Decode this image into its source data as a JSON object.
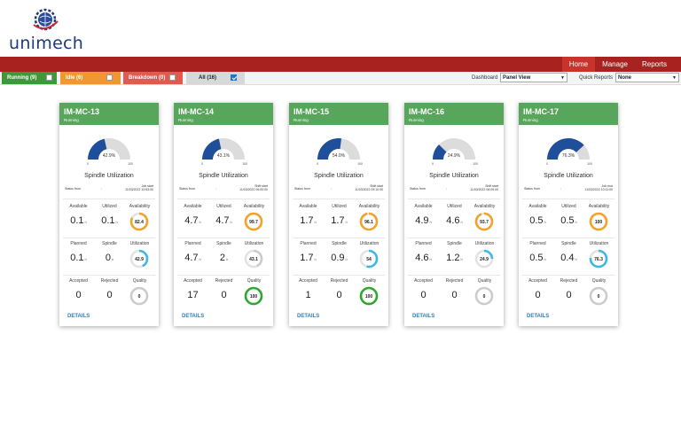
{
  "brand": {
    "name": "unimech"
  },
  "nav": {
    "items": [
      "Home",
      "Manage",
      "Reports"
    ]
  },
  "filters": {
    "running": "Running (9)",
    "idle": "Idle (6)",
    "breakdown": "Breakdown (0)",
    "all": "All (16)"
  },
  "toolbar": {
    "dashboard_label": "Dashboard",
    "dashboard_value": "Panel View",
    "quick_reports_label": "Quick Reports",
    "quick_reports_value": "None"
  },
  "labels": {
    "spindle_utilization": "Spindle Utilization",
    "status_from": "Status from",
    "colon": ":",
    "available": "Available",
    "utilized": "Utilized",
    "availability": "Availability",
    "planned": "Planned",
    "spindle": "Spindle",
    "utilization": "Utilization",
    "accepted": "Accepted",
    "rejected": "Rejected",
    "quality": "Quality",
    "details": "DETAILS",
    "unit_h": "h",
    "gauge_min": "0",
    "gauge_max": "100"
  },
  "colors": {
    "gauge_fill": "#1f4f9a",
    "gauge_track": "#dcdcdc",
    "ring_orange": "#f2a229",
    "ring_blue": "#3fb6e6",
    "ring_green": "#2fa82f",
    "ring_grey": "#cccccc"
  },
  "machines": [
    {
      "name": "IM-MC-13",
      "status": "Running",
      "spindle_pct": 42.9,
      "spindle_label": "42.9%",
      "status_from_line1": "Job start",
      "status_from_line2": "11/03/2022 10:53:00",
      "available": "0.1",
      "utilized": "0.1",
      "availability": "82.4",
      "availability_color": "orange",
      "planned": "0.1",
      "spindle": "0",
      "utilization": "42.9",
      "utilization_color": "blue",
      "accepted": "0",
      "rejected": "0",
      "quality": "0",
      "quality_color": "grey"
    },
    {
      "name": "IM-MC-14",
      "status": "Running",
      "spindle_pct": 43.1,
      "spindle_label": "43.1%",
      "status_from_line1": "Shift start",
      "status_from_line2": "11/03/2022 06:00:00",
      "available": "4.7",
      "utilized": "4.7",
      "availability": "99.7",
      "availability_color": "orange",
      "planned": "4.7",
      "spindle": "2",
      "utilization": "43.1",
      "utilization_color": "grey",
      "accepted": "17",
      "rejected": "0",
      "quality": "100",
      "quality_color": "green"
    },
    {
      "name": "IM-MC-15",
      "status": "Running",
      "spindle_pct": 54.0,
      "spindle_label": "54.0%",
      "status_from_line1": "Shift start",
      "status_from_line2": "11/03/2022 09:10:00",
      "available": "1.7",
      "utilized": "1.7",
      "availability": "96.1",
      "availability_color": "orange",
      "planned": "1.7",
      "spindle": "0.9",
      "utilization": "54",
      "utilization_color": "blue",
      "accepted": "1",
      "rejected": "0",
      "quality": "100",
      "quality_color": "green"
    },
    {
      "name": "IM-MC-16",
      "status": "Running",
      "spindle_pct": 24.9,
      "spindle_label": "24.9%",
      "status_from_line1": "Shift start",
      "status_from_line2": "11/03/2022 06:09:00",
      "available": "4.9",
      "utilized": "4.6",
      "availability": "93.7",
      "availability_color": "orange",
      "planned": "4.6",
      "spindle": "1.2",
      "utilization": "24.9",
      "utilization_color": "blue",
      "accepted": "0",
      "rejected": "0",
      "quality": "0",
      "quality_color": "grey"
    },
    {
      "name": "IM-MC-17",
      "status": "Running",
      "spindle_pct": 76.3,
      "spindle_label": "76.3%",
      "status_from_line1": "Job end",
      "status_from_line2": "11/03/2022 10:11:00",
      "available": "0.5",
      "utilized": "0.5",
      "availability": "100",
      "availability_color": "orange",
      "planned": "0.5",
      "spindle": "0.4",
      "utilization": "76.3",
      "utilization_color": "blue",
      "accepted": "0",
      "rejected": "0",
      "quality": "0",
      "quality_color": "grey"
    }
  ]
}
